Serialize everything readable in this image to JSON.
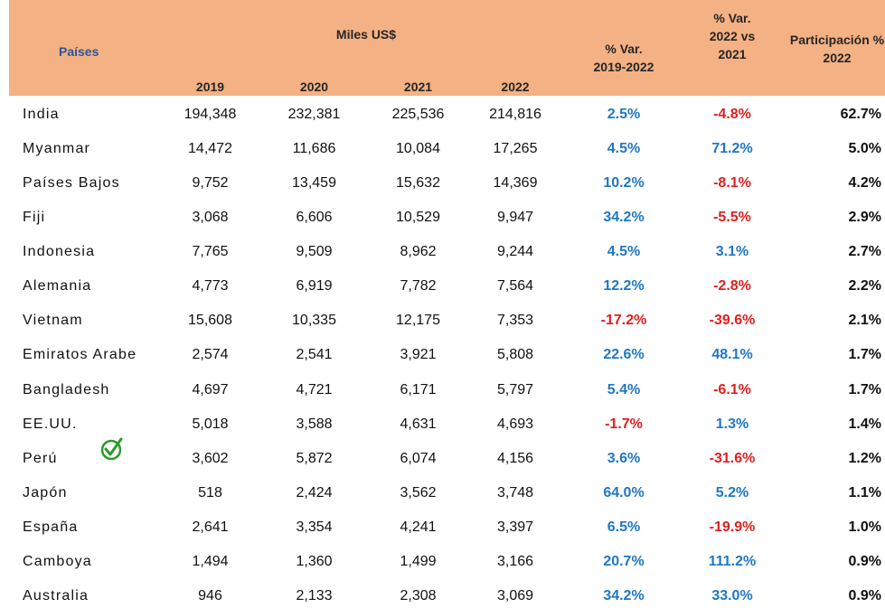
{
  "table": {
    "header": {
      "country": "Países",
      "group": "Miles US$",
      "years": [
        "2019",
        "2020",
        "2021",
        "2022"
      ],
      "var1": "% Var. 2019-2022",
      "var2": "% Var. 2022 vs 2021",
      "share": "Participación % 2022"
    },
    "rows": [
      [
        "India",
        "194,348",
        "232,381",
        "225,536",
        "214,816",
        "2.5%",
        "-4.8%",
        "62.7%"
      ],
      [
        "Myanmar",
        "14,472",
        "11,686",
        "10,084",
        "17,265",
        "4.5%",
        "71.2%",
        "5.0%"
      ],
      [
        "Países Bajos",
        "9,752",
        "13,459",
        "15,632",
        "14,369",
        "10.2%",
        "-8.1%",
        "4.2%"
      ],
      [
        "Fiji",
        "3,068",
        "6,606",
        "10,529",
        "9,947",
        "34.2%",
        "-5.5%",
        "2.9%"
      ],
      [
        "Indonesia",
        "7,765",
        "9,509",
        "8,962",
        "9,244",
        "4.5%",
        "3.1%",
        "2.7%"
      ],
      [
        "Alemania",
        "4,773",
        "6,919",
        "7,782",
        "7,564",
        "12.2%",
        "-2.8%",
        "2.2%"
      ],
      [
        "Vietnam",
        "15,608",
        "10,335",
        "12,175",
        "7,353",
        "-17.2%",
        "-39.6%",
        "2.1%"
      ],
      [
        "Emiratos Arabe",
        "2,574",
        "2,541",
        "3,921",
        "5,808",
        "22.6%",
        "48.1%",
        "1.7%"
      ],
      [
        "Bangladesh",
        "4,697",
        "4,721",
        "6,171",
        "5,797",
        "5.4%",
        "-6.1%",
        "1.7%"
      ],
      [
        "EE.UU.",
        "5,018",
        "3,588",
        "4,631",
        "4,693",
        "-1.7%",
        "1.3%",
        "1.4%"
      ],
      [
        "Perú",
        "3,602",
        "5,872",
        "6,074",
        "4,156",
        "3.6%",
        "-31.6%",
        "1.2%"
      ],
      [
        "Japón",
        "518",
        "2,424",
        "3,562",
        "3,748",
        "64.0%",
        "5.2%",
        "1.1%"
      ],
      [
        "España",
        "2,641",
        "3,354",
        "4,241",
        "3,397",
        "6.5%",
        "-19.9%",
        "1.0%"
      ],
      [
        "Camboya",
        "1,494",
        "1,360",
        "1,499",
        "3,166",
        "20.7%",
        "111.2%",
        "0.9%"
      ],
      [
        "Australia",
        "946",
        "2,133",
        "2,308",
        "3,069",
        "34.2%",
        "33.0%",
        "0.9%"
      ]
    ]
  }
}
